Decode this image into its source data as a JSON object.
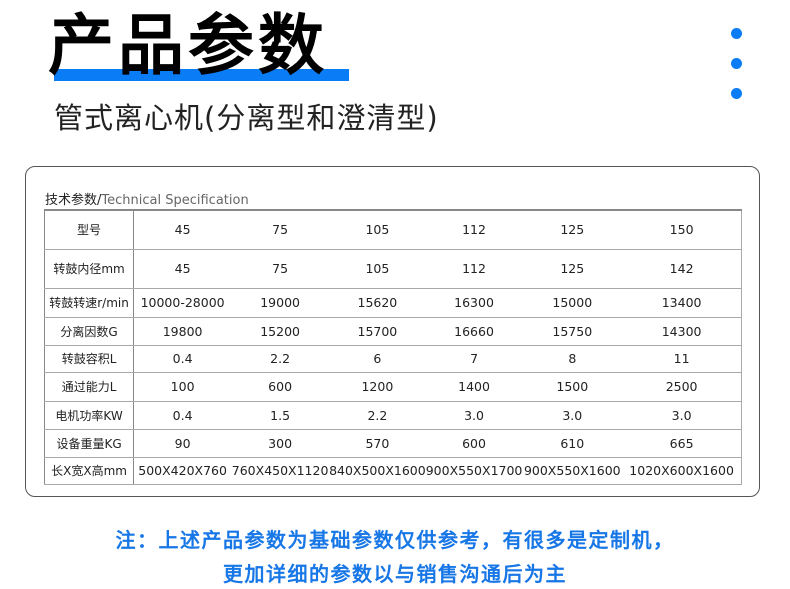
{
  "header": {
    "title": "产品参数",
    "subtitle": "管式离心机(分离型和澄清型)",
    "accent_color": "#0a7cf5"
  },
  "spec": {
    "label_cn": "技术参数/",
    "label_en": "Technical Specification",
    "rows": [
      {
        "label": "型号",
        "values": [
          "45",
          "75",
          "105",
          "112",
          "125",
          "150"
        ]
      },
      {
        "label": "转鼓内径mm",
        "values": [
          "45",
          "75",
          "105",
          "112",
          "125",
          "142"
        ]
      },
      {
        "label": "转鼓转速r/min",
        "values": [
          "10000-28000",
          "19000",
          "15620",
          "16300",
          "15000",
          "13400"
        ]
      },
      {
        "label": "分离因数G",
        "values": [
          "19800",
          "15200",
          "15700",
          "16660",
          "15750",
          "14300"
        ]
      },
      {
        "label": "转鼓容积L",
        "values": [
          "0.4",
          "2.2",
          "6",
          "7",
          "8",
          "11"
        ]
      },
      {
        "label": "通过能力L",
        "values": [
          "100",
          "600",
          "1200",
          "1400",
          "1500",
          "2500"
        ]
      },
      {
        "label": "电机功率KW",
        "values": [
          "0.4",
          "1.5",
          "2.2",
          "3.0",
          "3.0",
          "3.0"
        ]
      },
      {
        "label": "设备重量KG",
        "values": [
          "90",
          "300",
          "570",
          "600",
          "610",
          "665"
        ]
      },
      {
        "label": "长X宽X高mm",
        "values": [
          "500X420X760",
          "760X450X1120",
          "840X500X1600",
          "900X550X1700",
          "900X550X1600",
          "1020X600X1600"
        ]
      }
    ]
  },
  "note": {
    "line1": "注：上述产品参数为基础参数仅供参考，有很多是定制机，",
    "line2": "更加详细的参数以与销售沟通后为主",
    "color": "#1877e6"
  }
}
